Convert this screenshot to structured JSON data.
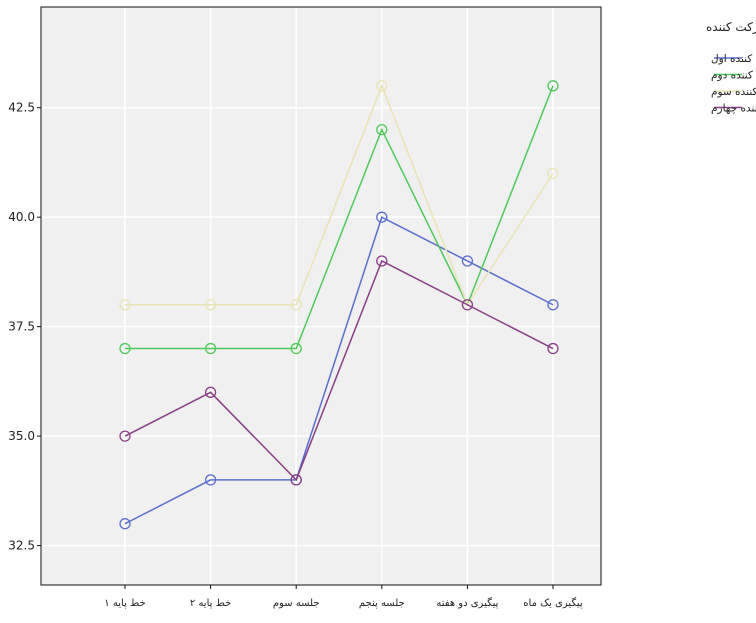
{
  "chart_data": {
    "type": "line",
    "categories": [
      "خط پایه ۱",
      "خط پایه ۲",
      "جلسه سوم",
      "جلسه پنجم",
      "پیگیری دو هفته",
      "پیگیری یک ماه"
    ],
    "yticks": [
      "32.5",
      "35.0",
      "37.5",
      "40.0",
      "42.5"
    ],
    "ylim": [
      31.6,
      44.8
    ],
    "grid": true,
    "legend_position": "right",
    "legend_title": "شرکت کننده",
    "series": [
      {
        "name": "شرکت کننده اول",
        "color": "#5b6fcf",
        "values": [
          33,
          34,
          34,
          40,
          39,
          38
        ]
      },
      {
        "name": "شرکت کننده دوم",
        "color": "#4fc95a",
        "values": [
          37,
          37,
          37,
          42,
          38,
          43
        ]
      },
      {
        "name": "شرکت کننده سوم",
        "color": "#e8e4b4",
        "values": [
          38,
          38,
          38,
          43,
          38,
          41
        ]
      },
      {
        "name": "شرکت کننده چهارم",
        "color": "#8a3f86",
        "values": [
          35,
          36,
          34,
          39,
          38,
          37
        ]
      }
    ]
  }
}
